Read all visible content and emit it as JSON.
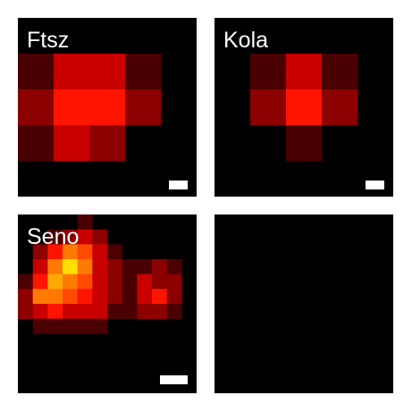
{
  "panels": [
    {
      "title": "Ftsz",
      "grid": [
        [
          0,
          0,
          0,
          0,
          0
        ],
        [
          2,
          6,
          6,
          2,
          0
        ],
        [
          4,
          8,
          8,
          4,
          0
        ],
        [
          2,
          6,
          4,
          0,
          0
        ],
        [
          0,
          0,
          0,
          0,
          0
        ]
      ],
      "has_scale_bar": true
    },
    {
      "title": "Kola",
      "grid": [
        [
          0,
          0,
          0,
          0,
          0
        ],
        [
          0,
          2,
          6,
          2,
          0
        ],
        [
          0,
          4,
          8,
          4,
          0
        ],
        [
          0,
          0,
          2,
          0,
          0
        ],
        [
          0,
          0,
          0,
          0,
          0
        ]
      ],
      "has_scale_bar": true
    },
    {
      "title": "Seno",
      "grid": [
        [
          0,
          0,
          0,
          0,
          2,
          0,
          0,
          0,
          0,
          0,
          0,
          0
        ],
        [
          0,
          0,
          2,
          4,
          6,
          4,
          0,
          0,
          0,
          0,
          0,
          0
        ],
        [
          0,
          4,
          8,
          10,
          9,
          6,
          2,
          0,
          0,
          0,
          0,
          0
        ],
        [
          0,
          6,
          10,
          12,
          10,
          6,
          4,
          2,
          2,
          4,
          2,
          0
        ],
        [
          2,
          8,
          11,
          10,
          9,
          6,
          4,
          2,
          6,
          4,
          4,
          0
        ],
        [
          4,
          10,
          10,
          9,
          8,
          6,
          4,
          2,
          6,
          8,
          4,
          0
        ],
        [
          4,
          6,
          8,
          6,
          6,
          6,
          2,
          2,
          4,
          4,
          2,
          0
        ],
        [
          0,
          2,
          2,
          2,
          2,
          2,
          0,
          0,
          0,
          0,
          0,
          0
        ],
        [
          0,
          0,
          0,
          0,
          0,
          0,
          0,
          0,
          0,
          0,
          0,
          0
        ],
        [
          0,
          0,
          0,
          0,
          0,
          0,
          0,
          0,
          0,
          0,
          0,
          0
        ],
        [
          0,
          0,
          0,
          0,
          0,
          0,
          0,
          0,
          0,
          0,
          0,
          0
        ],
        [
          0,
          0,
          0,
          0,
          0,
          0,
          0,
          0,
          0,
          0,
          0,
          0
        ]
      ],
      "has_scale_bar": true
    },
    {
      "title": "",
      "grid": [],
      "has_scale_bar": false
    }
  ],
  "colors": {
    "background": "#000000",
    "colormap": [
      "#000000",
      "#200000",
      "#4a0000",
      "#6a0000",
      "#8c0000",
      "#aa0000",
      "#c80000",
      "#e00400",
      "#ff1400",
      "#ff4a00",
      "#ff7a00",
      "#ffaa00",
      "#ffe000"
    ]
  }
}
